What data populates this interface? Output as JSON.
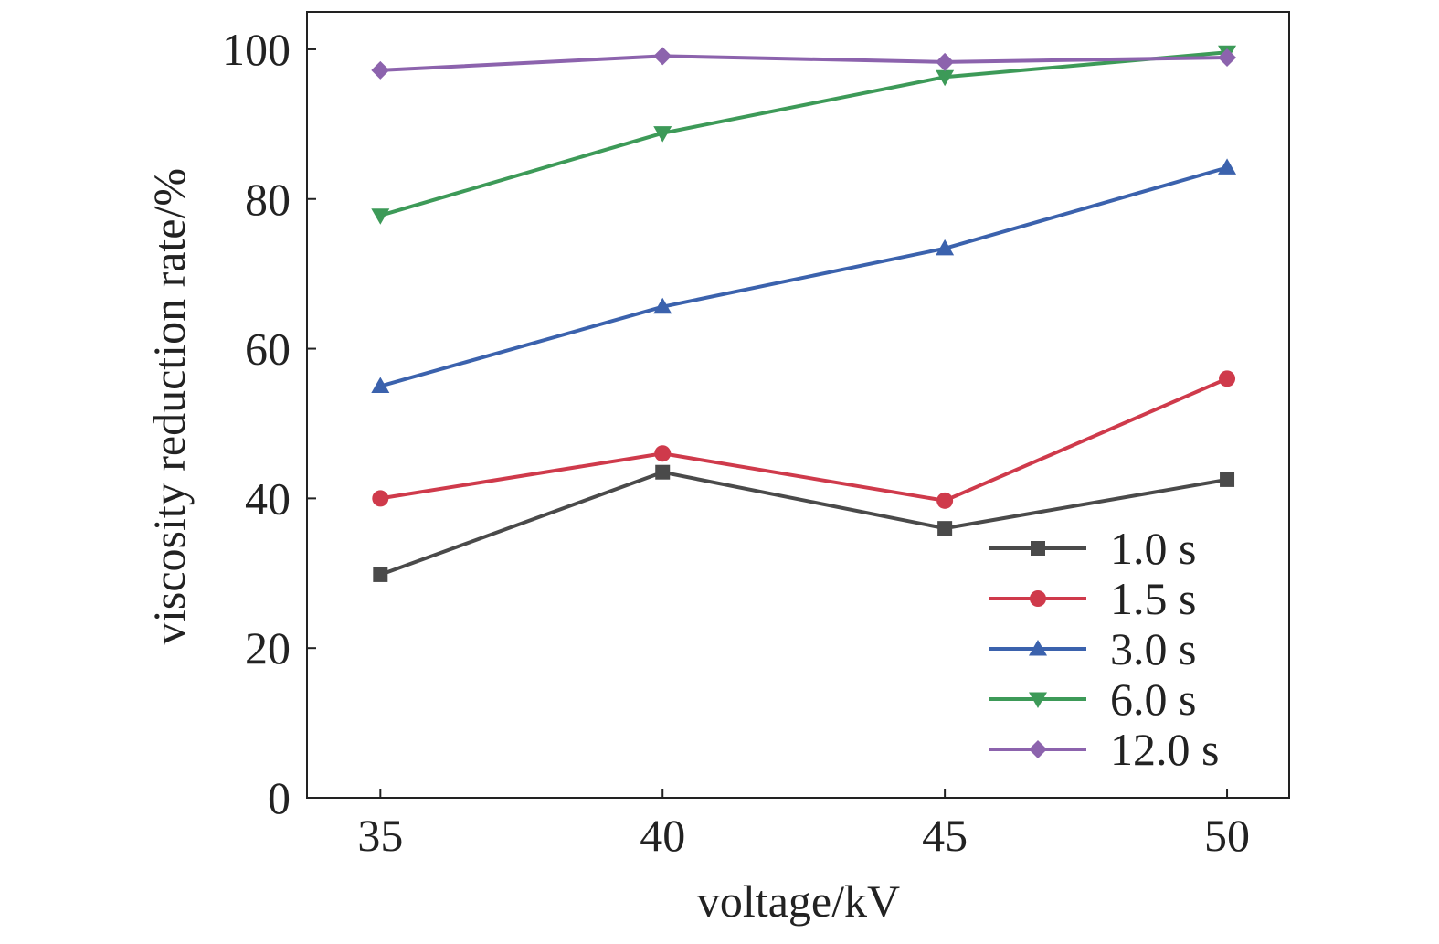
{
  "chart_data": {
    "type": "line",
    "xlabel": "voltage/kV",
    "ylabel": "viscosity reduction rate/%",
    "x": [
      35,
      40,
      45,
      50
    ],
    "x_ticks": [
      "35",
      "40",
      "45",
      "50"
    ],
    "y_ticks": [
      "0",
      "20",
      "40",
      "60",
      "80",
      "100"
    ],
    "xlim": [
      33.7,
      51.1
    ],
    "ylim": [
      0,
      105
    ],
    "grid": false,
    "legend_position": "bottom-right",
    "series": [
      {
        "name": "1.0 s",
        "marker": "square",
        "color": "#4a4a4a",
        "values": [
          29.8,
          43.5,
          36.0,
          42.5
        ]
      },
      {
        "name": "1.5 s",
        "marker": "circle",
        "color": "#cf3a4b",
        "values": [
          40.0,
          46.0,
          39.7,
          56.0
        ]
      },
      {
        "name": "3.0 s",
        "marker": "triangle-up",
        "color": "#3b62ad",
        "values": [
          55.0,
          65.6,
          73.4,
          84.2
        ]
      },
      {
        "name": "6.0 s",
        "marker": "triangle-down",
        "color": "#3d9a58",
        "values": [
          77.8,
          88.8,
          96.3,
          99.6
        ]
      },
      {
        "name": "12.0 s",
        "marker": "diamond",
        "color": "#8c63ad",
        "values": [
          97.2,
          99.1,
          98.3,
          98.9
        ]
      }
    ]
  }
}
